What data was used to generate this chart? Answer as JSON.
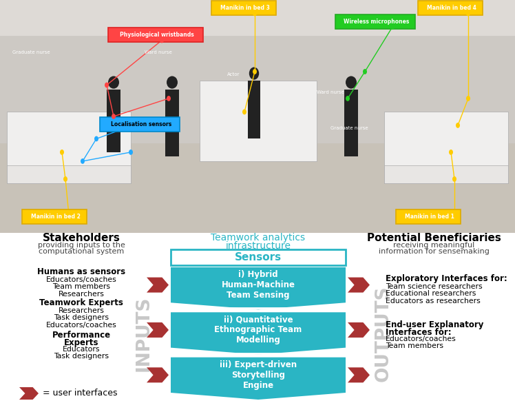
{
  "fig_width": 7.48,
  "fig_height": 5.98,
  "dpi": 100,
  "background_color": "#ffffff",
  "teal_color": "#2ab5c4",
  "teal_header_bg": "#ffffff",
  "red_arrow_color": "#a83232",
  "inputs_outputs_color": "#c8c8c8",
  "sensor_box_title_line1": "Teamwork analytics",
  "sensor_box_title_line2": "infrastructure",
  "sensor_box_header": "Sensors",
  "stakeholders_title": "Stakeholders",
  "stakeholders_sub1": "providing inputs to the",
  "stakeholders_sub2": "computational system",
  "beneficiaries_title": "Potential Beneficiaries",
  "beneficiaries_sub1": "receiving meaningful",
  "beneficiaries_sub2": "information for sensemaking",
  "sensor_labels": [
    "i) Hybrid\nHuman-Machine\nTeam Sensing",
    "ii) Quantitative\nEthnographic Team\nModelling",
    "iii) Expert-driven\nStorytelling\nEngine"
  ],
  "left_groups": [
    {
      "bold": "Humans as sensors",
      "items": [
        "Educators/coaches",
        "Team members",
        "Researchers"
      ]
    },
    {
      "bold": "Teamwork Experts",
      "items": [
        "Researchers",
        "Task designers",
        "Educators/coaches"
      ]
    },
    {
      "bold_lines": [
        "Performance",
        "Experts"
      ],
      "items": [
        "Educators",
        "Task designers"
      ]
    }
  ],
  "right_groups": [
    {
      "bold": "Exploratory Interfaces for:",
      "items": [
        "Team science researchers",
        "Educational researchers",
        "Educators as researchers"
      ]
    },
    {
      "bold_lines": [
        "End-user Explanatory",
        "Interfaces for:"
      ],
      "items": [
        "Educators/coaches",
        "Team members"
      ]
    }
  ],
  "inputs_label": "INPUTS",
  "outputs_label": "OUTPUTS",
  "legend_text": "= user interfaces",
  "photo_bg": "#b0aca8",
  "photo_top_strip": "#d8d4d0",
  "photo_floor": "#c8c4be"
}
